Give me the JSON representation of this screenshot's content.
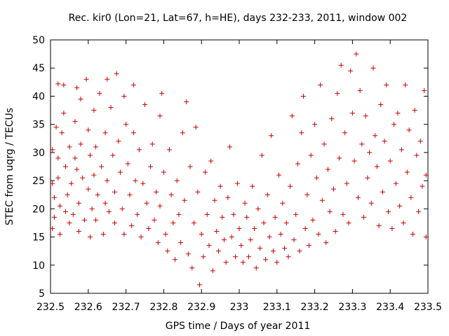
{
  "chart_data": {
    "type": "scatter",
    "title": "Rec. kir0 (Lon=21, Lat=67, h=HE), days 232-233, 2011, window 002",
    "xlabel": "GPS time / Days of year 2011",
    "ylabel": "STEC from uqrg / TECUs",
    "xlim": [
      232.5,
      233.5
    ],
    "ylim": [
      5,
      50
    ],
    "x_ticks": [
      "232.5",
      "232.6",
      "232.7",
      "232.8",
      "232.9",
      "233",
      "233.1",
      "233.2",
      "233.3",
      "233.4",
      "233.5"
    ],
    "y_ticks": [
      "5",
      "10",
      "15",
      "20",
      "25",
      "30",
      "35",
      "40",
      "45",
      "50"
    ],
    "grid": false,
    "marker": "plus",
    "color": "#cc0000",
    "series": [
      {
        "points": [
          [
            232.505,
            24.5
          ],
          [
            232.505,
            30.5
          ],
          [
            232.505,
            16.5
          ],
          [
            232.51,
            18.5
          ],
          [
            232.51,
            22.0
          ],
          [
            232.515,
            34.5
          ],
          [
            232.52,
            42.2
          ],
          [
            232.52,
            29.0
          ],
          [
            232.52,
            25.5
          ],
          [
            232.525,
            20.5
          ],
          [
            232.525,
            15.5
          ],
          [
            232.53,
            33.5
          ],
          [
            232.535,
            42.0
          ],
          [
            232.535,
            37.0
          ],
          [
            232.54,
            27.5
          ],
          [
            232.54,
            19.5
          ],
          [
            232.545,
            22.5
          ],
          [
            232.55,
            31.0
          ],
          [
            232.55,
            17.5
          ],
          [
            232.555,
            24.5
          ],
          [
            232.56,
            19.0
          ],
          [
            232.565,
            29.0
          ],
          [
            232.565,
            35.5
          ],
          [
            232.57,
            41.5
          ],
          [
            232.57,
            27.0
          ],
          [
            232.575,
            21.0
          ],
          [
            232.575,
            16.0
          ],
          [
            232.58,
            39.5
          ],
          [
            232.58,
            31.5
          ],
          [
            232.585,
            25.5
          ],
          [
            232.59,
            18.0
          ],
          [
            232.595,
            43.0
          ],
          [
            232.6,
            34.0
          ],
          [
            232.6,
            23.5
          ],
          [
            232.605,
            29.5
          ],
          [
            232.605,
            15.0
          ],
          [
            232.61,
            20.0
          ],
          [
            232.615,
            37.5
          ],
          [
            232.615,
            26.0
          ],
          [
            232.62,
            31.0
          ],
          [
            232.62,
            18.0
          ],
          [
            232.625,
            22.5
          ],
          [
            232.63,
            40.5
          ],
          [
            232.635,
            27.5
          ],
          [
            232.64,
            15.5
          ],
          [
            232.645,
            33.5
          ],
          [
            232.645,
            21.0
          ],
          [
            232.65,
            43.0
          ],
          [
            232.65,
            25.0
          ],
          [
            232.655,
            19.5
          ],
          [
            232.66,
            38.0
          ],
          [
            232.665,
            29.5
          ],
          [
            232.67,
            23.0
          ],
          [
            232.67,
            17.5
          ],
          [
            232.675,
            44.0
          ],
          [
            232.68,
            32.0
          ],
          [
            232.685,
            26.5
          ],
          [
            232.69,
            20.0
          ],
          [
            232.695,
            40.0
          ],
          [
            232.695,
            15.5
          ],
          [
            232.7,
            35.0
          ],
          [
            232.705,
            28.0
          ],
          [
            232.71,
            22.5
          ],
          [
            232.715,
            17.0
          ],
          [
            232.72,
            42.0
          ],
          [
            232.72,
            33.5
          ],
          [
            232.725,
            25.0
          ],
          [
            232.73,
            19.0
          ],
          [
            232.735,
            30.5
          ],
          [
            232.74,
            15.0
          ],
          [
            232.745,
            24.5
          ],
          [
            232.75,
            38.5
          ],
          [
            232.755,
            21.0
          ],
          [
            232.76,
            16.5
          ],
          [
            232.765,
            27.5
          ],
          [
            232.77,
            31.5
          ],
          [
            232.775,
            18.0
          ],
          [
            232.78,
            23.0
          ],
          [
            232.785,
            14.0
          ],
          [
            232.79,
            36.5
          ],
          [
            232.79,
            20.5
          ],
          [
            232.795,
            40.5
          ],
          [
            232.8,
            26.5
          ],
          [
            232.805,
            15.5
          ],
          [
            232.81,
            12.5
          ],
          [
            232.815,
            30.5
          ],
          [
            232.82,
            22.5
          ],
          [
            232.825,
            17.5
          ],
          [
            232.83,
            11.0
          ],
          [
            232.835,
            25.0
          ],
          [
            232.84,
            19.0
          ],
          [
            232.845,
            14.0
          ],
          [
            232.85,
            33.5
          ],
          [
            232.855,
            21.5
          ],
          [
            232.86,
            39.0
          ],
          [
            232.865,
            12.0
          ],
          [
            232.87,
            27.5
          ],
          [
            232.875,
            9.5
          ],
          [
            232.88,
            17.5
          ],
          [
            232.885,
            34.5
          ],
          [
            232.89,
            23.0
          ],
          [
            232.895,
            6.5
          ],
          [
            232.9,
            15.5
          ],
          [
            232.905,
            11.5
          ],
          [
            232.91,
            26.5
          ],
          [
            232.915,
            19.0
          ],
          [
            232.92,
            13.5
          ],
          [
            232.925,
            28.5
          ],
          [
            232.93,
            9.0
          ],
          [
            232.935,
            21.5
          ],
          [
            232.94,
            16.0
          ],
          [
            232.945,
            12.5
          ],
          [
            232.95,
            24.0
          ],
          [
            232.955,
            18.5
          ],
          [
            232.96,
            14.5
          ],
          [
            232.965,
            10.5
          ],
          [
            232.97,
            22.0
          ],
          [
            232.975,
            31.0
          ],
          [
            232.98,
            15.0
          ],
          [
            232.985,
            19.0
          ],
          [
            232.99,
            11.5
          ],
          [
            232.995,
            24.5
          ],
          [
            233.0,
            16.5
          ],
          [
            233.005,
            13.5
          ],
          [
            233.01,
            10.5
          ],
          [
            233.015,
            21.0
          ],
          [
            233.02,
            18.5
          ],
          [
            233.025,
            11.5
          ],
          [
            233.03,
            14.5
          ],
          [
            233.035,
            24.0
          ],
          [
            233.04,
            16.5
          ],
          [
            233.045,
            9.5
          ],
          [
            233.05,
            20.0
          ],
          [
            233.055,
            13.0
          ],
          [
            233.06,
            29.5
          ],
          [
            233.065,
            17.5
          ],
          [
            233.07,
            11.0
          ],
          [
            233.075,
            22.5
          ],
          [
            233.08,
            15.0
          ],
          [
            233.085,
            33.0
          ],
          [
            233.09,
            12.5
          ],
          [
            233.095,
            18.5
          ],
          [
            233.1,
            10.5
          ],
          [
            233.105,
            26.0
          ],
          [
            233.11,
            15.5
          ],
          [
            233.115,
            21.0
          ],
          [
            233.12,
            13.0
          ],
          [
            233.125,
            17.5
          ],
          [
            233.13,
            11.5
          ],
          [
            233.135,
            24.0
          ],
          [
            233.14,
            36.5
          ],
          [
            233.145,
            14.5
          ],
          [
            233.15,
            19.0
          ],
          [
            233.155,
            28.0
          ],
          [
            233.16,
            12.5
          ],
          [
            233.165,
            33.5
          ],
          [
            233.17,
            40.0
          ],
          [
            233.175,
            16.5
          ],
          [
            233.18,
            22.5
          ],
          [
            233.185,
            13.5
          ],
          [
            233.19,
            29.5
          ],
          [
            233.195,
            18.0
          ],
          [
            233.2,
            35.0
          ],
          [
            233.205,
            25.5
          ],
          [
            233.21,
            15.5
          ],
          [
            233.215,
            42.0
          ],
          [
            233.22,
            21.5
          ],
          [
            233.225,
            31.5
          ],
          [
            233.23,
            14.0
          ],
          [
            233.235,
            27.0
          ],
          [
            233.24,
            19.5
          ],
          [
            233.245,
            36.0
          ],
          [
            233.25,
            23.5
          ],
          [
            233.255,
            16.0
          ],
          [
            233.26,
            40.5
          ],
          [
            233.265,
            29.0
          ],
          [
            233.27,
            45.5
          ],
          [
            233.275,
            19.0
          ],
          [
            233.28,
            33.5
          ],
          [
            233.285,
            24.5
          ],
          [
            233.29,
            17.5
          ],
          [
            233.295,
            44.5
          ],
          [
            233.3,
            37.0
          ],
          [
            233.305,
            28.5
          ],
          [
            233.31,
            47.5
          ],
          [
            233.315,
            22.0
          ],
          [
            233.32,
            41.0
          ],
          [
            233.325,
            31.5
          ],
          [
            233.33,
            18.5
          ],
          [
            233.335,
            36.5
          ],
          [
            233.34,
            25.5
          ],
          [
            233.345,
            30.0
          ],
          [
            233.35,
            21.0
          ],
          [
            233.355,
            45.0
          ],
          [
            233.36,
            33.0
          ],
          [
            233.365,
            27.5
          ],
          [
            233.37,
            17.0
          ],
          [
            233.375,
            38.5
          ],
          [
            233.38,
            23.0
          ],
          [
            233.385,
            32.0
          ],
          [
            233.39,
            42.0
          ],
          [
            233.395,
            19.5
          ],
          [
            233.4,
            28.5
          ],
          [
            233.405,
            16.5
          ],
          [
            233.41,
            35.0
          ],
          [
            233.415,
            24.5
          ],
          [
            233.42,
            37.0
          ],
          [
            233.425,
            20.5
          ],
          [
            233.43,
            30.5
          ],
          [
            233.435,
            17.5
          ],
          [
            233.44,
            42.0
          ],
          [
            233.445,
            26.5
          ],
          [
            233.45,
            34.0
          ],
          [
            233.455,
            22.0
          ],
          [
            233.46,
            15.5
          ],
          [
            233.465,
            37.5
          ],
          [
            233.47,
            29.5
          ],
          [
            233.475,
            19.5
          ],
          [
            233.48,
            32.0
          ],
          [
            233.485,
            24.0
          ],
          [
            233.49,
            41.0
          ],
          [
            233.495,
            15.0
          ],
          [
            233.495,
            26.0
          ]
        ]
      }
    ]
  }
}
